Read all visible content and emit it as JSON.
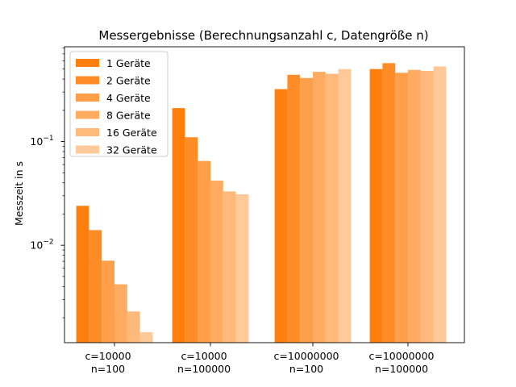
{
  "chart_data": {
    "type": "bar",
    "title": "Messergebnisse (Berechnungsanzahl c, Datengröße n)",
    "xlabel": "",
    "ylabel": "Messzeit in s",
    "yscale": "log",
    "ylim": [
      0.00115,
      0.82
    ],
    "yticks": [
      {
        "value": 0.01,
        "base": "10",
        "exp": "−2"
      },
      {
        "value": 0.1,
        "base": "10",
        "exp": "−1"
      }
    ],
    "categories": [
      [
        "c=10000",
        "n=100"
      ],
      [
        "c=10000",
        "n=100000"
      ],
      [
        "c=10000000",
        "n=100"
      ],
      [
        "c=10000000",
        "n=100000"
      ]
    ],
    "series": [
      {
        "name": "1 Geräte",
        "color": "#ff7f0e",
        "opacity": 1.0,
        "values": [
          0.024,
          0.21,
          0.32,
          0.5
        ]
      },
      {
        "name": "2 Geräte",
        "color": "#ff7f0e",
        "opacity": 0.9,
        "values": [
          0.014,
          0.11,
          0.44,
          0.57
        ]
      },
      {
        "name": "4 Geräte",
        "color": "#ff7f0e",
        "opacity": 0.75,
        "values": [
          0.0071,
          0.065,
          0.41,
          0.46
        ]
      },
      {
        "name": "8 Geräte",
        "color": "#ff7f0e",
        "opacity": 0.65,
        "values": [
          0.0042,
          0.042,
          0.47,
          0.49
        ]
      },
      {
        "name": "16 Geräte",
        "color": "#ff7f0e",
        "opacity": 0.55,
        "values": [
          0.0023,
          0.033,
          0.45,
          0.48
        ]
      },
      {
        "name": "32 Geräte",
        "color": "#ff7f0e",
        "opacity": 0.42,
        "values": [
          0.00145,
          0.031,
          0.5,
          0.53
        ]
      }
    ],
    "legend": "top-left",
    "grid": false
  }
}
